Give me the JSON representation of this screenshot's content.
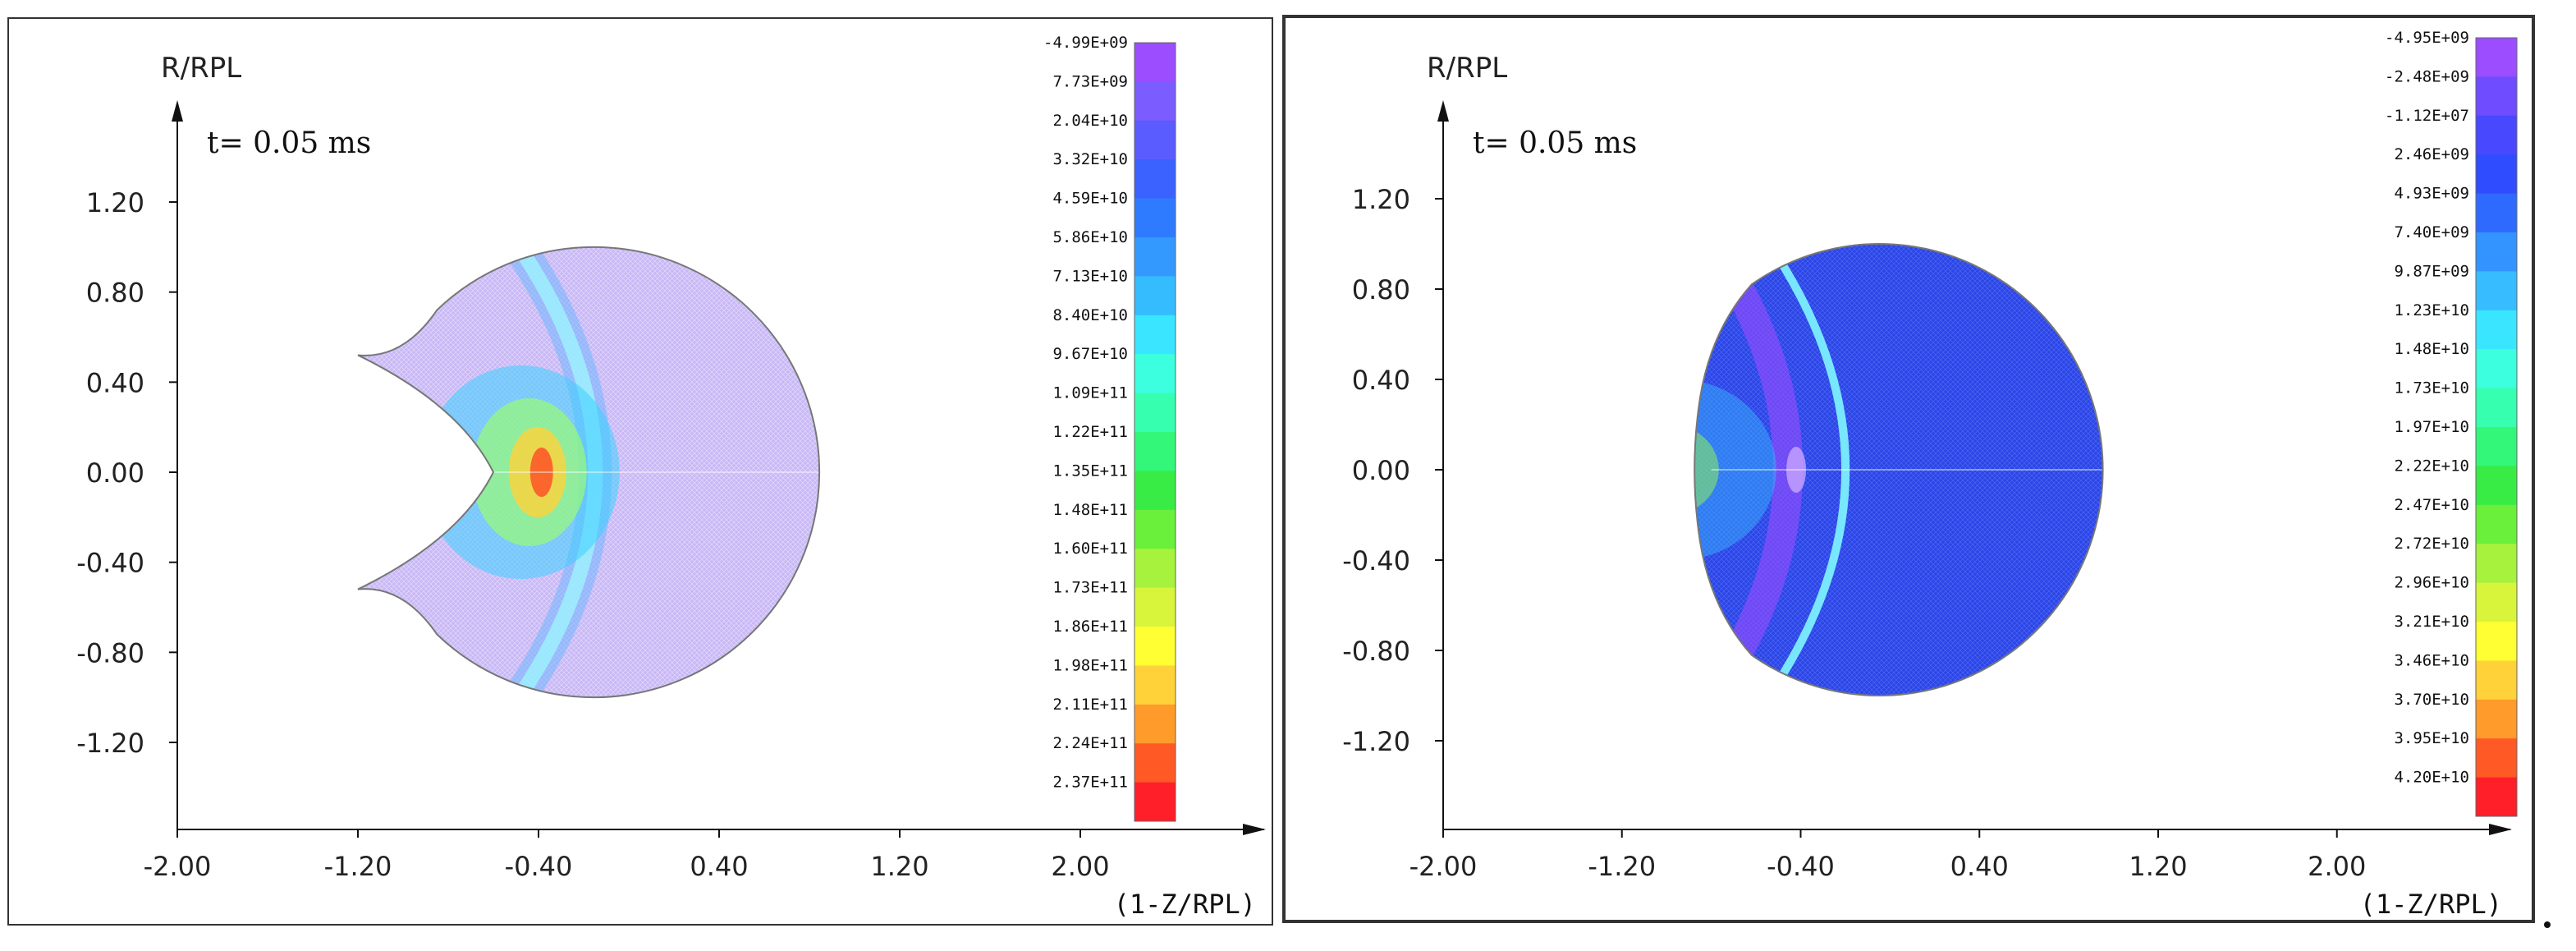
{
  "chart_data": [
    {
      "type": "heatmap",
      "title": "",
      "time_label": "t=",
      "time_value": "0.05",
      "time_unit": "ms",
      "ylabel": "R/RPL",
      "xlabel": "(1-Z/RPL)",
      "xlim": [
        -2.0,
        2.8
      ],
      "ylim": [
        -1.6,
        1.75
      ],
      "xticks": [
        "-2.00",
        "-1.20",
        "-0.40",
        "0.40",
        "1.20",
        "2.00"
      ],
      "xtick_values": [
        -2.0,
        -1.2,
        -0.4,
        0.4,
        1.2,
        2.0
      ],
      "yticks": [
        "1.20",
        "0.80",
        "0.40",
        "0.00",
        "-0.40",
        "-0.80",
        "-1.20"
      ],
      "ytick_values": [
        1.2,
        0.8,
        0.4,
        0.0,
        -0.4,
        -0.8,
        -1.2
      ],
      "domain_shape": "crater",
      "wave_front_x": -0.05,
      "colorbar_labels": [
        "-4.99E+09",
        "7.73E+09",
        "2.04E+10",
        "3.32E+10",
        "4.59E+10",
        "5.86E+10",
        "7.13E+10",
        "8.40E+10",
        "9.67E+10",
        "1.09E+11",
        "1.22E+11",
        "1.35E+11",
        "1.48E+11",
        "1.60E+11",
        "1.73E+11",
        "1.86E+11",
        "1.98E+11",
        "2.11E+11",
        "2.24E+11",
        "2.37E+11"
      ],
      "colorbar_colors": [
        "#9b4dff",
        "#7a5cff",
        "#5a5cff",
        "#3b62ff",
        "#2f7bff",
        "#3499ff",
        "#35bcff",
        "#3ae6ff",
        "#3bffde",
        "#37ffb0",
        "#33f778",
        "#39ec45",
        "#6aef3a",
        "#a6f23d",
        "#d8f53c",
        "#ffff33",
        "#ffd23a",
        "#ff9b2b",
        "#ff5a25",
        "#ff1f28"
      ],
      "background_color": "#c9b8f6"
    },
    {
      "type": "heatmap",
      "title": "",
      "time_label": "t=",
      "time_value": "0.05",
      "time_unit": "ms",
      "ylabel": "R/RPL",
      "xlabel": "(1-Z/RPL)",
      "xlim": [
        -2.0,
        2.8
      ],
      "ylim": [
        -1.6,
        1.75
      ],
      "xticks": [
        "-2.00",
        "-1.20",
        "-0.40",
        "0.40",
        "1.20",
        "2.00"
      ],
      "xtick_values": [
        -2.0,
        -1.2,
        -0.4,
        0.4,
        1.2,
        2.0
      ],
      "yticks": [
        "1.20",
        "0.80",
        "0.40",
        "0.00",
        "-0.40",
        "-0.80",
        "-1.20"
      ],
      "ytick_values": [
        1.2,
        0.8,
        0.4,
        0.0,
        -0.4,
        -0.8,
        -1.2
      ],
      "domain_shape": "flat",
      "wave_front_x": -0.1,
      "colorbar_labels": [
        "-4.95E+09",
        "-2.48E+09",
        "-1.12E+07",
        "2.46E+09",
        "4.93E+09",
        "7.40E+09",
        "9.87E+09",
        "1.23E+10",
        "1.48E+10",
        "1.73E+10",
        "1.97E+10",
        "2.22E+10",
        "2.47E+10",
        "2.72E+10",
        "2.96E+10",
        "3.21E+10",
        "3.46E+10",
        "3.70E+10",
        "3.95E+10",
        "4.20E+10"
      ],
      "colorbar_colors": [
        "#9b4dff",
        "#6f4cff",
        "#4848ff",
        "#2f4cff",
        "#2f6aff",
        "#3393ff",
        "#36bcff",
        "#3ae6ff",
        "#3bffde",
        "#37ffb0",
        "#33f778",
        "#39ec45",
        "#6aef3a",
        "#a6f23d",
        "#d8f53c",
        "#ffff33",
        "#ffd23a",
        "#ff9b2b",
        "#ff5a25",
        "#ff1f28"
      ],
      "background_color": "#2b45e8"
    }
  ]
}
